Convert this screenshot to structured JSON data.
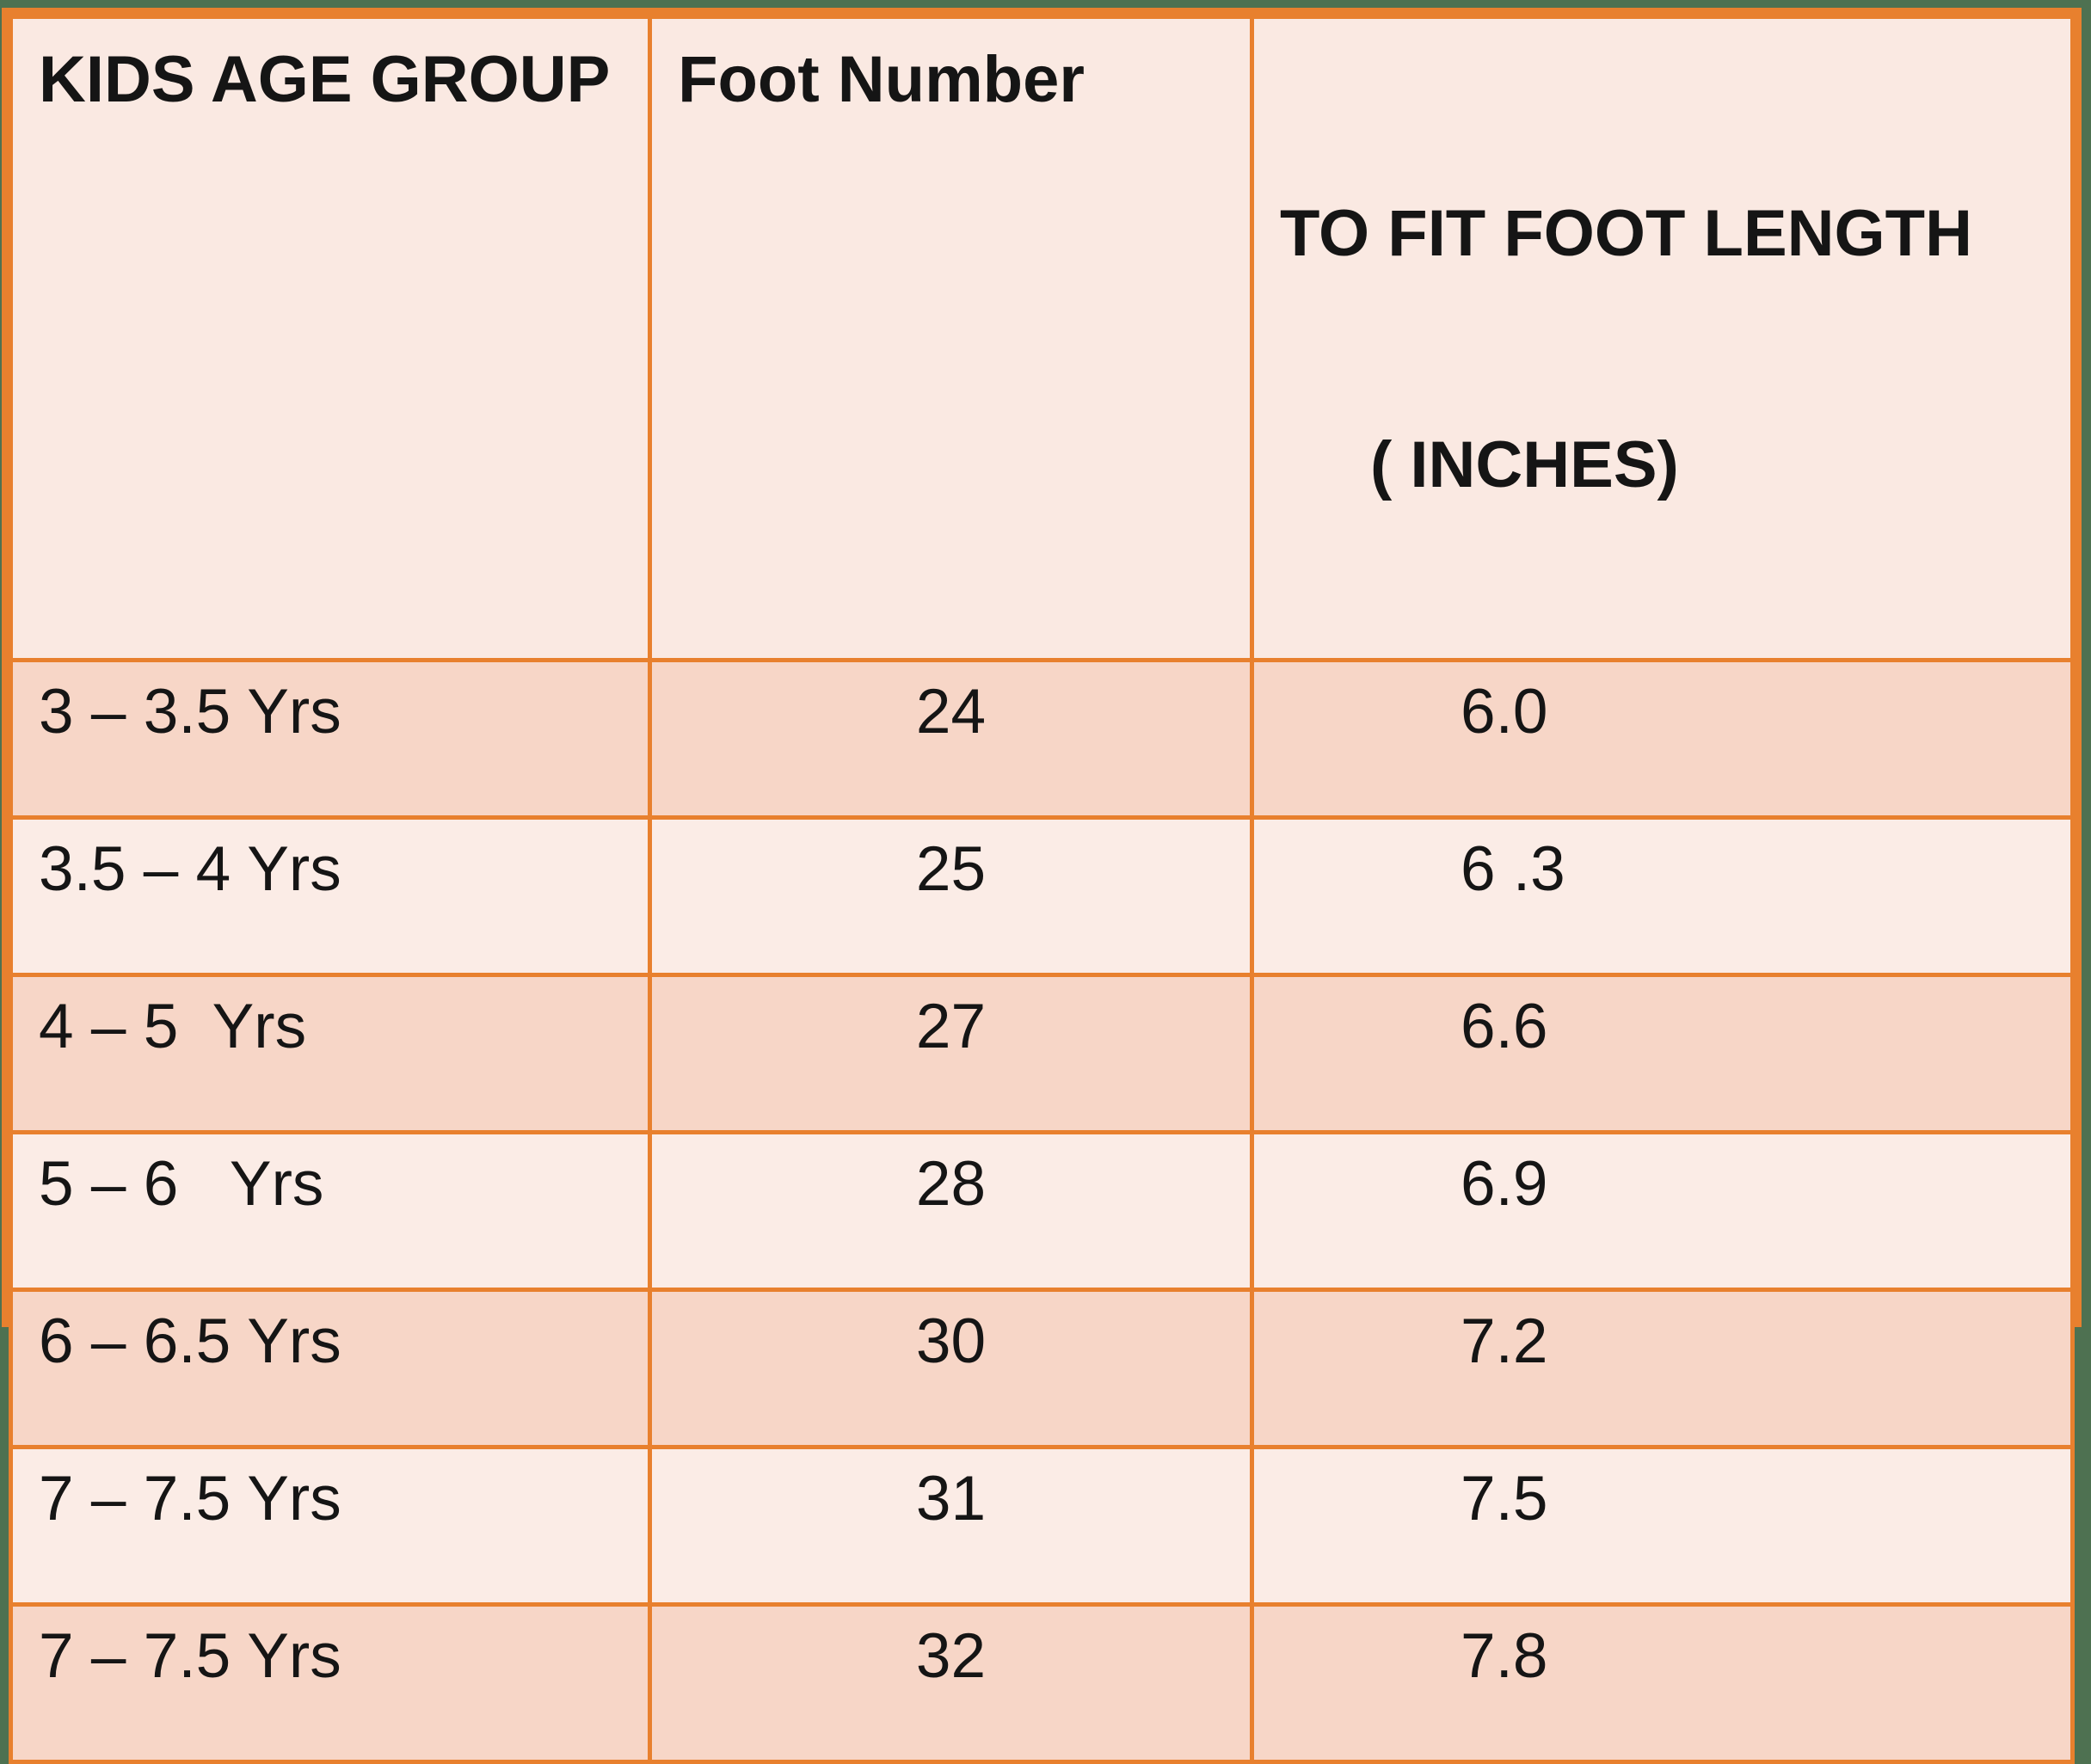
{
  "colors": {
    "page_background": "#4E7151",
    "table_border": "#E8802E",
    "header_row_bg": "#FAE9E2",
    "odd_row_bg": "#F7D6C7",
    "even_row_bg": "#FBECE6",
    "text": "#151515"
  },
  "table": {
    "headers": [
      {
        "label": "KIDS AGE GROUP"
      },
      {
        "label": "Foot Number"
      },
      {
        "label": "TO FIT FOOT LENGTH",
        "label_line2": "( INCHES)"
      }
    ],
    "rows": [
      {
        "age_group": "3 – 3.5 Yrs",
        "foot_number": "24",
        "fit_length_inches": "6.0"
      },
      {
        "age_group": "3.5 – 4 Yrs",
        "foot_number": "25",
        "fit_length_inches": "6 .3"
      },
      {
        "age_group": "4 – 5  Yrs",
        "foot_number": "27",
        "fit_length_inches": "6.6"
      },
      {
        "age_group": "5 – 6   Yrs",
        "foot_number": "28",
        "fit_length_inches": "6.9"
      },
      {
        "age_group": "6 – 6.5 Yrs",
        "foot_number": "30",
        "fit_length_inches": "7.2"
      },
      {
        "age_group": "7 – 7.5 Yrs",
        "foot_number": "31",
        "fit_length_inches": "7.5"
      },
      {
        "age_group": "7 – 7.5 Yrs",
        "foot_number": "32",
        "fit_length_inches": "7.8"
      }
    ]
  },
  "chart_data": {
    "type": "table",
    "columns": [
      "KIDS AGE GROUP",
      "Foot Number",
      "TO FIT FOOT LENGTH ( INCHES)"
    ],
    "rows": [
      [
        "3 – 3.5 Yrs",
        24,
        6.0
      ],
      [
        "3.5 – 4 Yrs",
        25,
        6.3
      ],
      [
        "4 – 5 Yrs",
        27,
        6.6
      ],
      [
        "5 – 6 Yrs",
        28,
        6.9
      ],
      [
        "6 – 6.5 Yrs",
        30,
        7.2
      ],
      [
        "7 – 7.5 Yrs",
        31,
        7.5
      ],
      [
        "7 – 7.5 Yrs",
        32,
        7.8
      ]
    ]
  }
}
